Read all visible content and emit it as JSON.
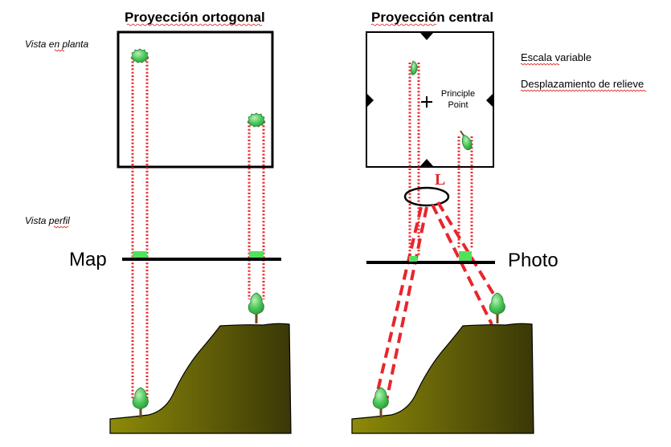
{
  "left_panel": {
    "title": "Proyección ortogonal",
    "plan_view_label": "Vista en planta",
    "profile_view_label": "Vista perfil",
    "map_label": "Map"
  },
  "right_panel": {
    "title": "Proyección central",
    "principal_point_label_line1": "Principle",
    "principal_point_label_line2": "Point",
    "lens_label": "L",
    "photo_label": "Photo"
  },
  "notes": {
    "variable_scale": "Escala variable",
    "relief_displacement": "Desplazamiento de relieve"
  },
  "colors": {
    "ray": "#e8262c",
    "tree_foliage": "#4cc95a",
    "image_block": "#4fe35b",
    "hill_light": "#8d8a08",
    "hill_dark": "#3a3807",
    "frame": "#000000"
  }
}
